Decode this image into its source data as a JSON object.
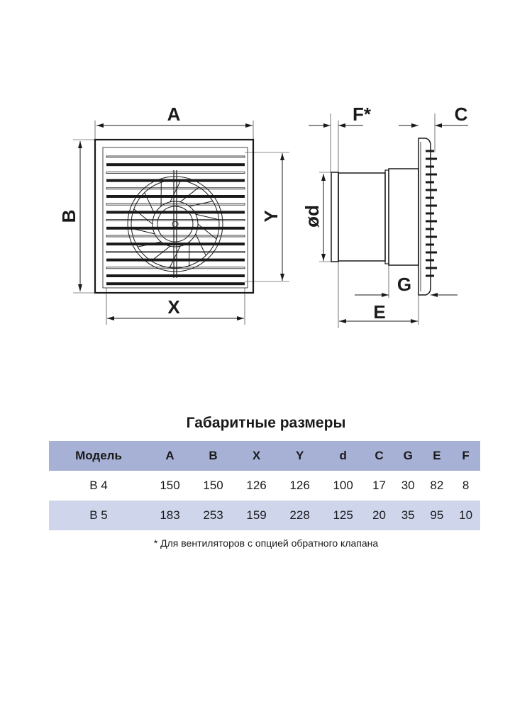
{
  "drawing": {
    "labels": {
      "A": "A",
      "B": "B",
      "X": "X",
      "Y": "Y",
      "F": "F*",
      "C": "C",
      "d": "ød",
      "G": "G",
      "E": "E"
    }
  },
  "table": {
    "title": "Габаритные размеры",
    "headers": [
      "Модель",
      "A",
      "B",
      "X",
      "Y",
      "d",
      "C",
      "G",
      "E",
      "F"
    ],
    "rows": [
      [
        "B 4",
        "150",
        "150",
        "126",
        "126",
        "100",
        "17",
        "30",
        "82",
        "8"
      ],
      [
        "B 5",
        "183",
        "253",
        "159",
        "228",
        "125",
        "20",
        "35",
        "95",
        "10"
      ]
    ],
    "header_color": "#a7b1d5",
    "alt_row_color": "#cfd6ec"
  },
  "footnote": "* Для вентиляторов с опцией обратного клапана"
}
